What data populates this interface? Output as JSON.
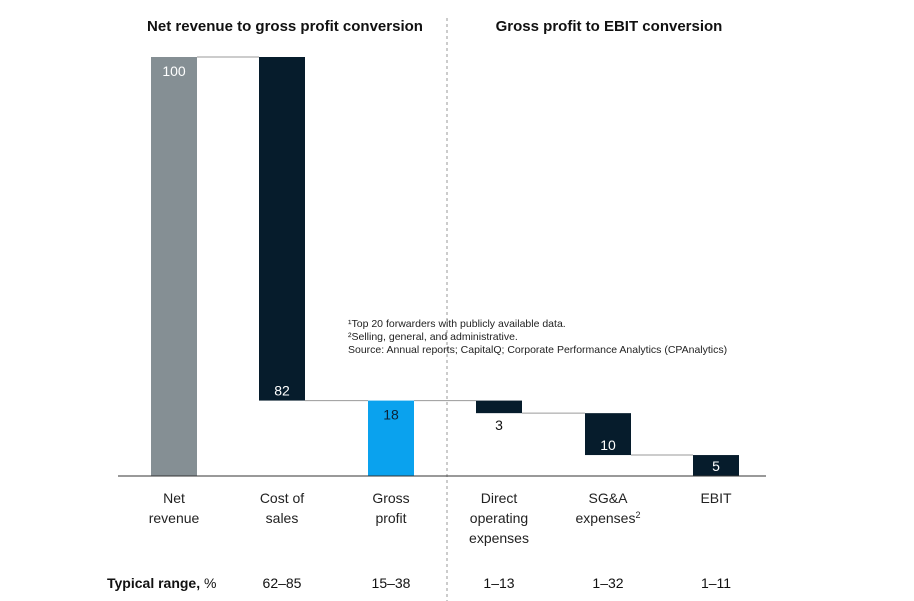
{
  "chart_data": {
    "type": "bar",
    "subtype": "waterfall",
    "sections": [
      {
        "title": "Net revenue to gross profit conversion"
      },
      {
        "title": "Gross profit to EBIT conversion"
      }
    ],
    "categories": [
      {
        "label": [
          "Net",
          "revenue"
        ],
        "sup": "",
        "value": 100,
        "base": 0,
        "color": "#858f94",
        "value_label": "100",
        "range": "",
        "label_pos": "top",
        "label_color": "#ffffff"
      },
      {
        "label": [
          "Cost of",
          "sales"
        ],
        "sup": "",
        "value": 82,
        "base": 18,
        "color": "#061c2c",
        "value_label": "82",
        "range": "62–85",
        "label_pos": "bottom",
        "label_color": "#ffffff"
      },
      {
        "label": [
          "Gross",
          "profit"
        ],
        "sup": "",
        "value": 18,
        "base": 0,
        "color": "#0aa2ee",
        "value_label": "18",
        "range": "15–38",
        "label_pos": "top",
        "label_color": "#0b2236"
      },
      {
        "label": [
          "Direct",
          "operating",
          "expenses"
        ],
        "sup": "",
        "value": 3,
        "base": 15,
        "color": "#061c2c",
        "value_label": "3",
        "range": "1–13",
        "label_pos": "below",
        "label_color": "#111111"
      },
      {
        "label": [
          "SG&A",
          "expenses"
        ],
        "sup": "2",
        "value": 10,
        "base": 5,
        "color": "#061c2c",
        "value_label": "10",
        "range": "1–32",
        "label_pos": "bottom",
        "label_color": "#ffffff"
      },
      {
        "label": [
          "EBIT"
        ],
        "sup": "",
        "value": 5,
        "base": 0,
        "color": "#061c2c",
        "value_label": "5",
        "range": "1–11",
        "label_pos": "bottom",
        "label_color": "#ffffff"
      }
    ],
    "range_title": "Typical range, %",
    "ylim": [
      0,
      100
    ]
  },
  "notes": {
    "line1": "¹Top 20 forwarders with publicly available data.",
    "line2": "²Selling, general, and administrative.",
    "line3": " Source: Annual reports; CapitalQ; Corporate Performance Analytics (CPAnalytics)"
  }
}
